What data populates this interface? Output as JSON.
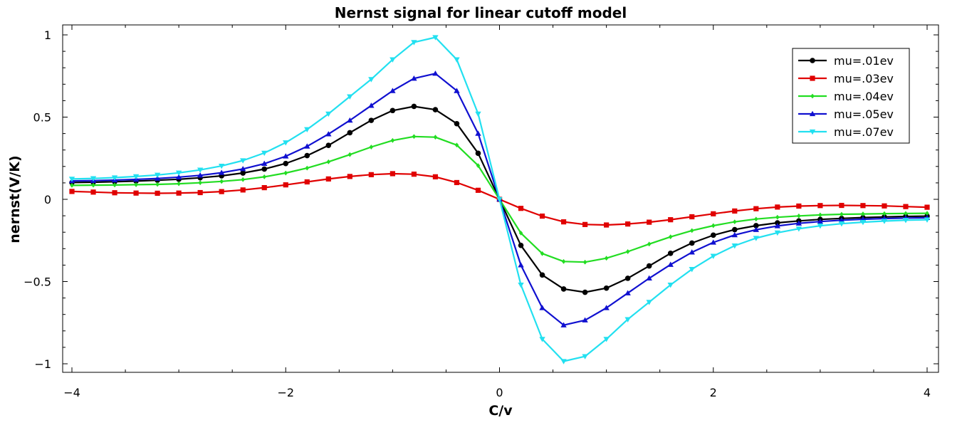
{
  "chart_data": {
    "type": "line",
    "title": "Nernst signal for linear cutoff model",
    "xlabel": "C/v",
    "ylabel": "nernst(V/K)",
    "xlim": [
      -4,
      4
    ],
    "ylim": [
      -1.05,
      1.05
    ],
    "x_ticks": [
      -4,
      -2,
      0,
      2,
      4
    ],
    "x_tick_labels": [
      "−4",
      "−2",
      "0",
      "2",
      "4"
    ],
    "y_ticks": [
      1,
      0.5,
      0,
      -0.5,
      -1
    ],
    "y_tick_labels": [
      "1",
      "0.5",
      "0",
      "−0.5",
      "−1"
    ],
    "grid": false,
    "legend_position": "top-right",
    "x": [
      -4,
      -3.8,
      -3.6,
      -3.4,
      -3.2,
      -3,
      -2.8,
      -2.6,
      -2.4,
      -2.2,
      -2,
      -1.8,
      -1.6,
      -1.4,
      -1.2,
      -1,
      -0.8,
      -0.6,
      -0.4,
      -0.2,
      0,
      0.2,
      0.4,
      0.6,
      0.8,
      1,
      1.2,
      1.4,
      1.6,
      1.8,
      2,
      2.2,
      2.4,
      2.6,
      2.8,
      3,
      3.2,
      3.4,
      3.6,
      3.8,
      4
    ],
    "series": [
      {
        "name": "mu=.01ev",
        "color": "#000000",
        "marker": "circle",
        "values": [
          0.102,
          0.104,
          0.107,
          0.111,
          0.116,
          0.122,
          0.131,
          0.143,
          0.16,
          0.184,
          0.218,
          0.266,
          0.328,
          0.405,
          0.48,
          0.54,
          0.565,
          0.545,
          0.46,
          0.28,
          0.0,
          -0.28,
          -0.46,
          -0.545,
          -0.565,
          -0.54,
          -0.48,
          -0.405,
          -0.328,
          -0.266,
          -0.218,
          -0.184,
          -0.16,
          -0.143,
          -0.131,
          -0.122,
          -0.116,
          -0.111,
          -0.107,
          -0.104,
          -0.102
        ]
      },
      {
        "name": "mu=.03ev",
        "color": "#e00000",
        "marker": "square",
        "values": [
          0.048,
          0.044,
          0.04,
          0.038,
          0.037,
          0.038,
          0.041,
          0.047,
          0.057,
          0.071,
          0.088,
          0.106,
          0.124,
          0.139,
          0.15,
          0.156,
          0.153,
          0.137,
          0.102,
          0.055,
          0.0,
          -0.055,
          -0.102,
          -0.137,
          -0.153,
          -0.156,
          -0.15,
          -0.139,
          -0.124,
          -0.106,
          -0.088,
          -0.071,
          -0.057,
          -0.047,
          -0.041,
          -0.038,
          -0.037,
          -0.038,
          -0.04,
          -0.044,
          -0.048
        ]
      },
      {
        "name": "mu=.04ev",
        "color": "#22dd22",
        "marker": "diamond",
        "values": [
          0.085,
          0.086,
          0.087,
          0.089,
          0.091,
          0.095,
          0.101,
          0.109,
          0.12,
          0.137,
          0.16,
          0.19,
          0.228,
          0.272,
          0.318,
          0.358,
          0.382,
          0.378,
          0.33,
          0.205,
          0.0,
          -0.205,
          -0.33,
          -0.378,
          -0.382,
          -0.358,
          -0.318,
          -0.272,
          -0.228,
          -0.19,
          -0.16,
          -0.137,
          -0.12,
          -0.109,
          -0.101,
          -0.095,
          -0.091,
          -0.089,
          -0.087,
          -0.086,
          -0.085
        ]
      },
      {
        "name": "mu=.05ev",
        "color": "#1010d0",
        "marker": "triangle-up",
        "values": [
          0.112,
          0.114,
          0.117,
          0.121,
          0.127,
          0.135,
          0.146,
          0.162,
          0.185,
          0.217,
          0.262,
          0.322,
          0.397,
          0.48,
          0.57,
          0.66,
          0.735,
          0.765,
          0.66,
          0.4,
          0.0,
          -0.4,
          -0.66,
          -0.765,
          -0.735,
          -0.66,
          -0.57,
          -0.48,
          -0.397,
          -0.322,
          -0.262,
          -0.217,
          -0.185,
          -0.162,
          -0.146,
          -0.135,
          -0.127,
          -0.121,
          -0.117,
          -0.114,
          -0.112
        ]
      },
      {
        "name": "mu=.07ev",
        "color": "#22e0f0",
        "marker": "triangle-down",
        "values": [
          0.124,
          0.127,
          0.132,
          0.139,
          0.148,
          0.161,
          0.179,
          0.203,
          0.236,
          0.282,
          0.345,
          0.425,
          0.52,
          0.625,
          0.73,
          0.85,
          0.955,
          0.985,
          0.85,
          0.52,
          0.0,
          -0.52,
          -0.85,
          -0.985,
          -0.955,
          -0.85,
          -0.73,
          -0.625,
          -0.52,
          -0.425,
          -0.345,
          -0.282,
          -0.236,
          -0.203,
          -0.179,
          -0.161,
          -0.148,
          -0.139,
          -0.132,
          -0.127,
          -0.124
        ]
      }
    ]
  }
}
